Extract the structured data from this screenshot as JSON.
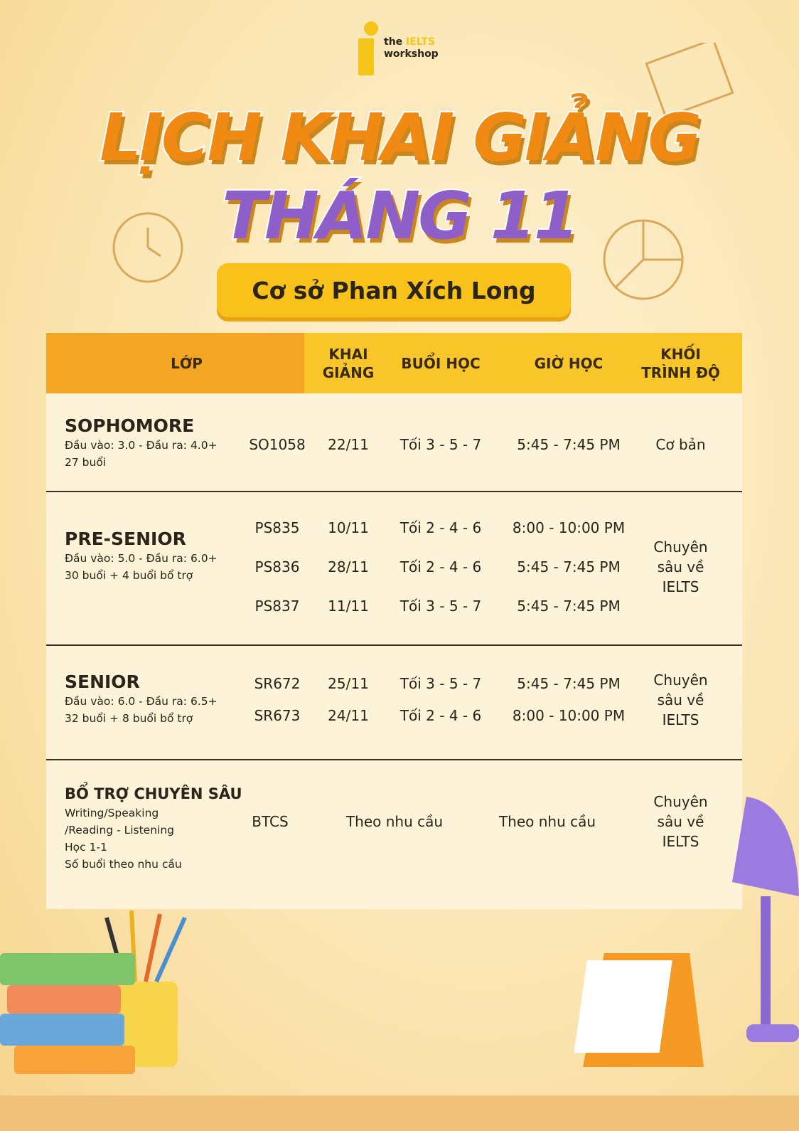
{
  "logo": {
    "line1a": "the",
    "line1b": "IELTS",
    "line2": "workshop"
  },
  "title": {
    "line1": "LỊCH KHAI GIẢNG",
    "line2": "THÁNG 11"
  },
  "branch": "Cơ sở Phan Xích Long",
  "colors": {
    "orange": "#f08a12",
    "purple": "#8e5fc8",
    "yellow": "#f9c62a",
    "header_orange": "#f5a524"
  },
  "table": {
    "headers": [
      "LỚP",
      "KHAI GIẢNG",
      "BUỔI HỌC",
      "GIỜ HỌC",
      "KHỐI TRÌNH ĐỘ"
    ],
    "rows": [
      {
        "name": "SOPHOMORE",
        "desc": [
          "Đầu vào: 3.0 - Đầu ra: 4.0+",
          "27 buổi"
        ],
        "level": "Cơ bản",
        "classes": [
          {
            "code": "SO1058",
            "start": "22/11",
            "days": "Tối 3 - 5 - 7",
            "time": "5:45 - 7:45 PM"
          }
        ]
      },
      {
        "name": "PRE-SENIOR",
        "desc": [
          "Đầu vào: 5.0 - Đầu ra: 6.0+",
          "30 buổi + 4 buổi bổ trợ"
        ],
        "level": "Chuyên sâu về IELTS",
        "classes": [
          {
            "code": "PS835",
            "start": "10/11",
            "days": "Tối 2 - 4 - 6",
            "time": "8:00 - 10:00 PM"
          },
          {
            "code": "PS836",
            "start": "28/11",
            "days": "Tối 2 - 4 - 6",
            "time": "5:45 - 7:45 PM"
          },
          {
            "code": "PS837",
            "start": "11/11",
            "days": "Tối 3 - 5 - 7",
            "time": "5:45 - 7:45 PM"
          }
        ]
      },
      {
        "name": "SENIOR",
        "desc": [
          "Đầu vào: 6.0 - Đầu ra: 6.5+",
          "32 buổi + 8 buổi bổ trợ"
        ],
        "level": "Chuyên sâu về IELTS",
        "classes": [
          {
            "code": "SR672",
            "start": "25/11",
            "days": "Tối 3 - 5 - 7",
            "time": "5:45 - 7:45 PM"
          },
          {
            "code": "SR673",
            "start": "24/11",
            "days": "Tối 2 - 4 - 6",
            "time": "8:00 - 10:00 PM"
          }
        ]
      },
      {
        "name": "BỔ TRỢ CHUYÊN SÂU",
        "desc": [
          "Writing/Speaking",
          "/Reading - Listening",
          "Học 1-1",
          "Số buổi theo nhu cầu"
        ],
        "level": "Chuyên sâu về IELTS",
        "code": "BTCS",
        "start_days": "Theo nhu cầu",
        "time": "Theo nhu cầu"
      }
    ]
  }
}
